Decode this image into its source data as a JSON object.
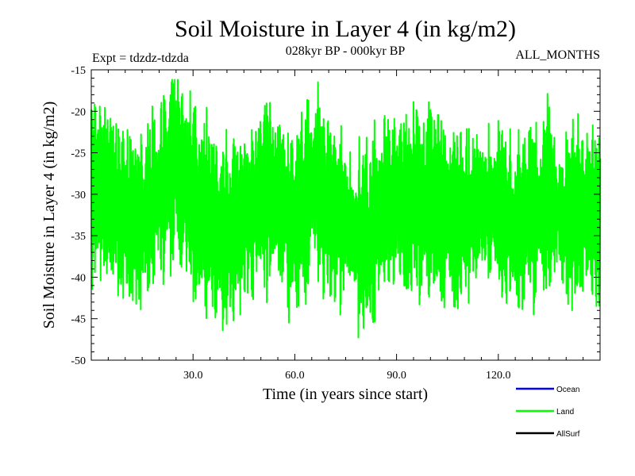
{
  "chart_data": {
    "type": "line",
    "title": "Soil Moisture in Layer 4 (in kg/m2)",
    "subtitle": "028kyr BP - 000kyr BP",
    "expt_label": "Expt = tdzdz-tdzda",
    "months_label": "ALL_MONTHS",
    "xlabel": "Time (in years since start)",
    "ylabel": "Soil Moisture in Layer 4 (in kg/m2)",
    "xlim": [
      0,
      150
    ],
    "ylim": [
      -50,
      -15
    ],
    "xticks": [
      30,
      60,
      90,
      120
    ],
    "xtick_labels": [
      "30.0",
      "60.0",
      "90.0",
      "120.0"
    ],
    "yticks": [
      -15,
      -20,
      -25,
      -30,
      -35,
      -40,
      -45,
      -50
    ],
    "ytick_labels": [
      "-15",
      "-20",
      "-25",
      "-30",
      "-35",
      "-40",
      "-45",
      "-50"
    ],
    "grid": false,
    "legend": [
      {
        "name": "Ocean",
        "color": "#0000ff"
      },
      {
        "name": "Land",
        "color": "#00ff00"
      },
      {
        "name": "AllSurf",
        "color": "#000000"
      }
    ],
    "series": [
      {
        "name": "Land",
        "color": "#00ff00",
        "points_per_year": 12,
        "description": "Monthly land soil moisture, oscillating roughly between -47.8 and -16.2 around a mean near -31",
        "keypoints": [
          [
            0,
            -29
          ],
          [
            5,
            -30
          ],
          [
            10,
            -32
          ],
          [
            15,
            -33
          ],
          [
            20,
            -30
          ],
          [
            25,
            -26
          ],
          [
            30,
            -31
          ],
          [
            35,
            -33
          ],
          [
            40,
            -35
          ],
          [
            45,
            -33
          ],
          [
            50,
            -31
          ],
          [
            55,
            -30
          ],
          [
            60,
            -34
          ],
          [
            65,
            -29
          ],
          [
            70,
            -31
          ],
          [
            75,
            -33
          ],
          [
            80,
            -36
          ],
          [
            85,
            -33
          ],
          [
            90,
            -30
          ],
          [
            95,
            -31
          ],
          [
            100,
            -31
          ],
          [
            105,
            -32
          ],
          [
            110,
            -33
          ],
          [
            115,
            -31
          ],
          [
            120,
            -32
          ],
          [
            125,
            -34
          ],
          [
            130,
            -32
          ],
          [
            135,
            -31
          ],
          [
            140,
            -33
          ],
          [
            145,
            -32
          ],
          [
            150,
            -33
          ]
        ],
        "min": -47.8,
        "max": -16.2
      }
    ]
  }
}
